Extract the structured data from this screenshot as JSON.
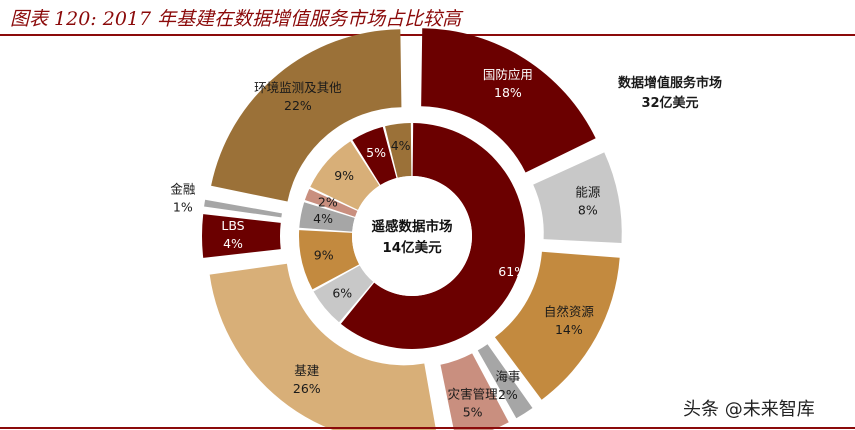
{
  "title": "图表 120: 2017 年基建在数据增值服务市场占比较高",
  "watermark": "头条 @未来智库",
  "chart_data": {
    "type": "pie",
    "outer": {
      "caption_line1": "数据增值服务市场",
      "caption_line2": "32亿美元",
      "slices": [
        {
          "label": "国防应用",
          "value": 18,
          "value_text": "18%",
          "color": "#6b0000",
          "text_color": "#ffffff"
        },
        {
          "label": "能源",
          "value": 8,
          "value_text": "8%",
          "color": "#c8c8c8",
          "text_color": "#1a1a1a"
        },
        {
          "label": "自然资源",
          "value": 14,
          "value_text": "14%",
          "color": "#c38a3f",
          "text_color": "#1a1a1a"
        },
        {
          "label": "海事",
          "value": 2,
          "value_text": "2%",
          "color": "#a6a6a6",
          "text_color": "#1a1a1a"
        },
        {
          "label": "灾害管理",
          "value": 5,
          "value_text": "5%",
          "color": "#c98f7f",
          "text_color": "#1a1a1a"
        },
        {
          "label": "基建",
          "value": 26,
          "value_text": "26%",
          "color": "#d8af78",
          "text_color": "#1a1a1a"
        },
        {
          "label": "LBS",
          "value": 4,
          "value_text": "4%",
          "color": "#6b0000",
          "text_color": "#ffffff"
        },
        {
          "label": "金融",
          "value": 1,
          "value_text": "1%",
          "color": "#a6a6a6",
          "text_color": "#1a1a1a"
        },
        {
          "label": "环境监测及其他",
          "value": 22,
          "value_text": "22%",
          "color": "#9b7138",
          "text_color": "#1a1a1a"
        }
      ]
    },
    "inner": {
      "caption_line1": "遥感数据市场",
      "caption_line2": "14亿美元",
      "slices": [
        {
          "value": 61,
          "value_text": "61%",
          "color": "#6b0000",
          "text_color": "#ffffff"
        },
        {
          "value": 6,
          "value_text": "6%",
          "color": "#c8c8c8",
          "text_color": "#1a1a1a"
        },
        {
          "value": 9,
          "value_text": "9%",
          "color": "#c38a3f",
          "text_color": "#1a1a1a"
        },
        {
          "value": 4,
          "value_text": "4%",
          "color": "#a6a6a6",
          "text_color": "#1a1a1a"
        },
        {
          "value": 2,
          "value_text": "2%",
          "color": "#c98f7f",
          "text_color": "#1a1a1a"
        },
        {
          "value": 9,
          "value_text": "9%",
          "color": "#d8af78",
          "text_color": "#1a1a1a"
        },
        {
          "value": 5,
          "value_text": "5%",
          "color": "#6b0000",
          "text_color": "#ffffff"
        },
        {
          "value": 4,
          "value_text": "4%",
          "color": "#9b7138",
          "text_color": "#1a1a1a"
        }
      ]
    }
  }
}
